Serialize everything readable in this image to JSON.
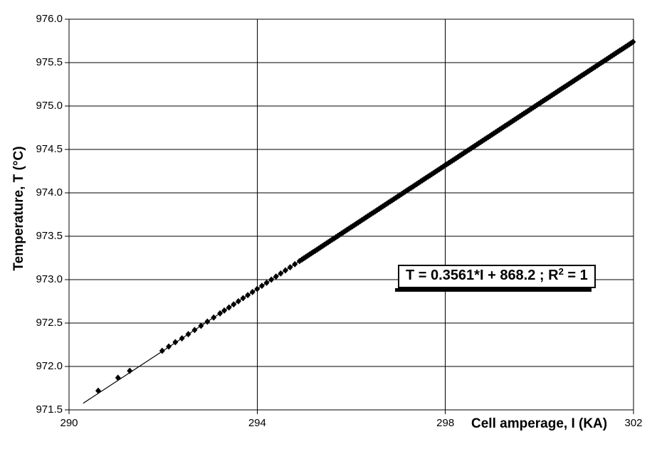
{
  "chart_data": {
    "type": "scatter",
    "title": "",
    "xlabel": "Cell amperage, I (KA)",
    "ylabel": "Temperature, T (°C)",
    "xlim": [
      290,
      302
    ],
    "ylim": [
      971.5,
      976.0
    ],
    "xticks": [
      290,
      294,
      298,
      302
    ],
    "xtick_labels": [
      "290",
      "294",
      "298",
      "302"
    ],
    "yticks": [
      976.0,
      975.5,
      975.0,
      974.5,
      974.0,
      973.5,
      973.0,
      972.5,
      972.0,
      971.5
    ],
    "ytick_labels": [
      "976.0",
      "975.5",
      "975.0",
      "974.5",
      "974.0",
      "973.5",
      "973.0",
      "972.5",
      "972.0",
      "971.5"
    ],
    "grid": true,
    "legend": "none",
    "marker": "diamond",
    "colors": {
      "marker": "#000000",
      "line": "#000000",
      "grid": "#000000",
      "axis": "#000000",
      "background": "#ffffff"
    },
    "trendline": {
      "slope": 0.3561,
      "intercept": 868.2,
      "x_start": 290.3,
      "x_end": 302,
      "label_pre": "T = 0.3561*I + 868.2 ; R",
      "label_sup": "2",
      "label_post": " = 1"
    },
    "scatter_points": [
      [
        290.62,
        971.72
      ],
      [
        291.04,
        971.87
      ],
      [
        291.29,
        971.95
      ],
      [
        291.98,
        972.18
      ],
      [
        292.12,
        972.23
      ],
      [
        292.26,
        972.28
      ]
    ],
    "dense_segments": [
      {
        "x_start": 292.4,
        "x_end": 293.25,
        "step": 0.135
      },
      {
        "x_start": 293.3,
        "x_end": 294.9,
        "step": 0.1
      },
      {
        "x_start": 294.95,
        "x_end": 302.0,
        "step": 0.04
      }
    ]
  }
}
